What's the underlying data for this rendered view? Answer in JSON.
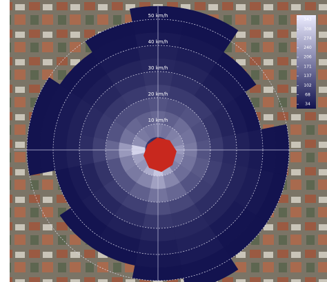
{
  "chart_data": {
    "type": "polar_heatmap",
    "theta": [
      0,
      22.5,
      45,
      67.5,
      90,
      112.5,
      135,
      157.5,
      180,
      202.5,
      225,
      247.5,
      270,
      292.5,
      315,
      337.5
    ],
    "rbins": [
      0,
      5,
      10,
      15,
      20,
      25,
      30,
      35,
      40,
      45,
      50,
      55
    ],
    "z": [
      [
        60,
        180,
        150,
        120,
        90,
        70,
        50,
        40,
        30,
        20,
        18
      ],
      [
        60,
        170,
        140,
        110,
        80,
        60,
        45,
        35,
        25,
        18,
        18
      ],
      [
        70,
        190,
        160,
        120,
        80,
        50,
        35,
        25,
        18,
        null,
        null
      ],
      [
        80,
        200,
        170,
        110,
        70,
        45,
        30,
        20,
        null,
        null,
        null
      ],
      [
        90,
        230,
        180,
        120,
        80,
        55,
        40,
        30,
        20,
        18,
        null
      ],
      [
        80,
        210,
        170,
        130,
        90,
        60,
        45,
        35,
        25,
        18,
        null
      ],
      [
        70,
        190,
        160,
        120,
        85,
        60,
        45,
        30,
        20,
        18,
        null
      ],
      [
        90,
        250,
        200,
        150,
        100,
        70,
        50,
        40,
        30,
        20,
        18
      ],
      [
        100,
        300,
        240,
        170,
        110,
        75,
        50,
        35,
        25,
        18,
        null
      ],
      [
        90,
        260,
        200,
        140,
        90,
        60,
        40,
        25,
        18,
        null,
        null
      ],
      [
        80,
        220,
        180,
        120,
        80,
        50,
        35,
        20,
        18,
        null,
        null
      ],
      [
        90,
        240,
        190,
        120,
        70,
        45,
        30,
        20,
        null,
        null,
        null
      ],
      [
        100,
        320,
        230,
        150,
        90,
        60,
        40,
        30,
        20,
        18,
        null
      ],
      [
        80,
        210,
        170,
        120,
        80,
        55,
        40,
        30,
        20,
        18,
        null
      ],
      [
        70,
        180,
        150,
        110,
        75,
        50,
        35,
        25,
        18,
        null,
        null
      ],
      [
        60,
        170,
        140,
        110,
        80,
        60,
        45,
        30,
        20,
        18,
        null
      ]
    ],
    "rlim": [
      0,
      55
    ],
    "rticks": [
      {
        "value": 10,
        "label": "10 km/h"
      },
      {
        "value": 20,
        "label": "20 km/h"
      },
      {
        "value": 30,
        "label": "30 km/h"
      },
      {
        "value": 40,
        "label": "40 km/h"
      },
      {
        "value": 50,
        "label": "50 km/h"
      }
    ],
    "colorscale": [
      "#12124e",
      "#ececff"
    ],
    "zlim": [
      17,
      360
    ],
    "zticks": [
      34,
      68,
      102,
      137,
      171,
      206,
      240,
      274,
      308,
      343
    ],
    "grid": true
  }
}
